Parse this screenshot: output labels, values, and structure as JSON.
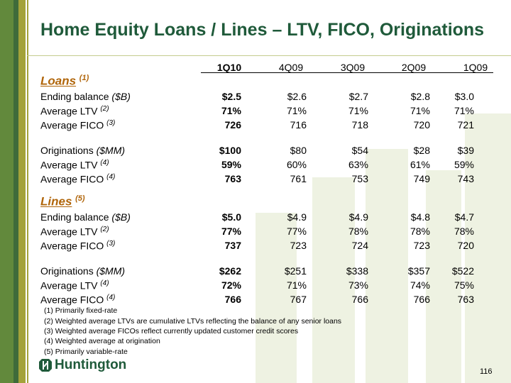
{
  "title": "Home Equity Loans / Lines – LTV, FICO, Originations",
  "columns": [
    "1Q10",
    "4Q09",
    "3Q09",
    "2Q09",
    "1Q09"
  ],
  "sections": [
    {
      "name": "Loans",
      "note": "(1)",
      "rows": [
        {
          "label": "Ending balance",
          "unit": "($B)",
          "values": [
            "$2.5",
            "$2.6",
            "$2.7",
            "$2.8",
            "$3.0"
          ]
        },
        {
          "label": "Average LTV",
          "unit": "(2)",
          "values": [
            "71%",
            "71%",
            "71%",
            "71%",
            "71%"
          ]
        },
        {
          "label": "Average FICO",
          "unit": "(3)",
          "values": [
            "726",
            "716",
            "718",
            "720",
            "721"
          ]
        },
        {
          "label": "Originations",
          "unit": "($MM)",
          "values": [
            "$100",
            "$80",
            "$54",
            "$28",
            "$39"
          ]
        },
        {
          "label": "Average LTV",
          "unit": "(4)",
          "values": [
            "59%",
            "60%",
            "63%",
            "61%",
            "59%"
          ]
        },
        {
          "label": "Average FICO",
          "unit": "(4)",
          "values": [
            "763",
            "761",
            "753",
            "749",
            "743"
          ]
        }
      ]
    },
    {
      "name": "Lines",
      "note": "(5)",
      "rows": [
        {
          "label": "Ending balance",
          "unit": "($B)",
          "values": [
            "$5.0",
            "$4.9",
            "$4.9",
            "$4.8",
            "$4.7"
          ]
        },
        {
          "label": "Average LTV",
          "unit": "(2)",
          "values": [
            "77%",
            "77%",
            "78%",
            "78%",
            "78%"
          ]
        },
        {
          "label": "Average FICO",
          "unit": "(3)",
          "values": [
            "737",
            "723",
            "724",
            "723",
            "720"
          ]
        },
        {
          "label": "Originations",
          "unit": "($MM)",
          "values": [
            "$262",
            "$251",
            "$338",
            "$357",
            "$522"
          ]
        },
        {
          "label": "Average LTV",
          "unit": "(4)",
          "values": [
            "72%",
            "71%",
            "73%",
            "74%",
            "75%"
          ]
        },
        {
          "label": "Average FICO",
          "unit": "(4)",
          "values": [
            "766",
            "767",
            "766",
            "766",
            "763"
          ]
        }
      ]
    }
  ],
  "footnotes": [
    "(1)  Primarily fixed-rate",
    "(2)  Weighted average LTVs are cumulative LTVs reflecting the balance of any senior loans",
    "(3)  Weighted average FICOs reflect currently updated customer credit scores",
    "(4)  Weighted average at origination",
    "(5)  Primarily variable-rate"
  ],
  "logo": "Huntington",
  "page_number": "116"
}
